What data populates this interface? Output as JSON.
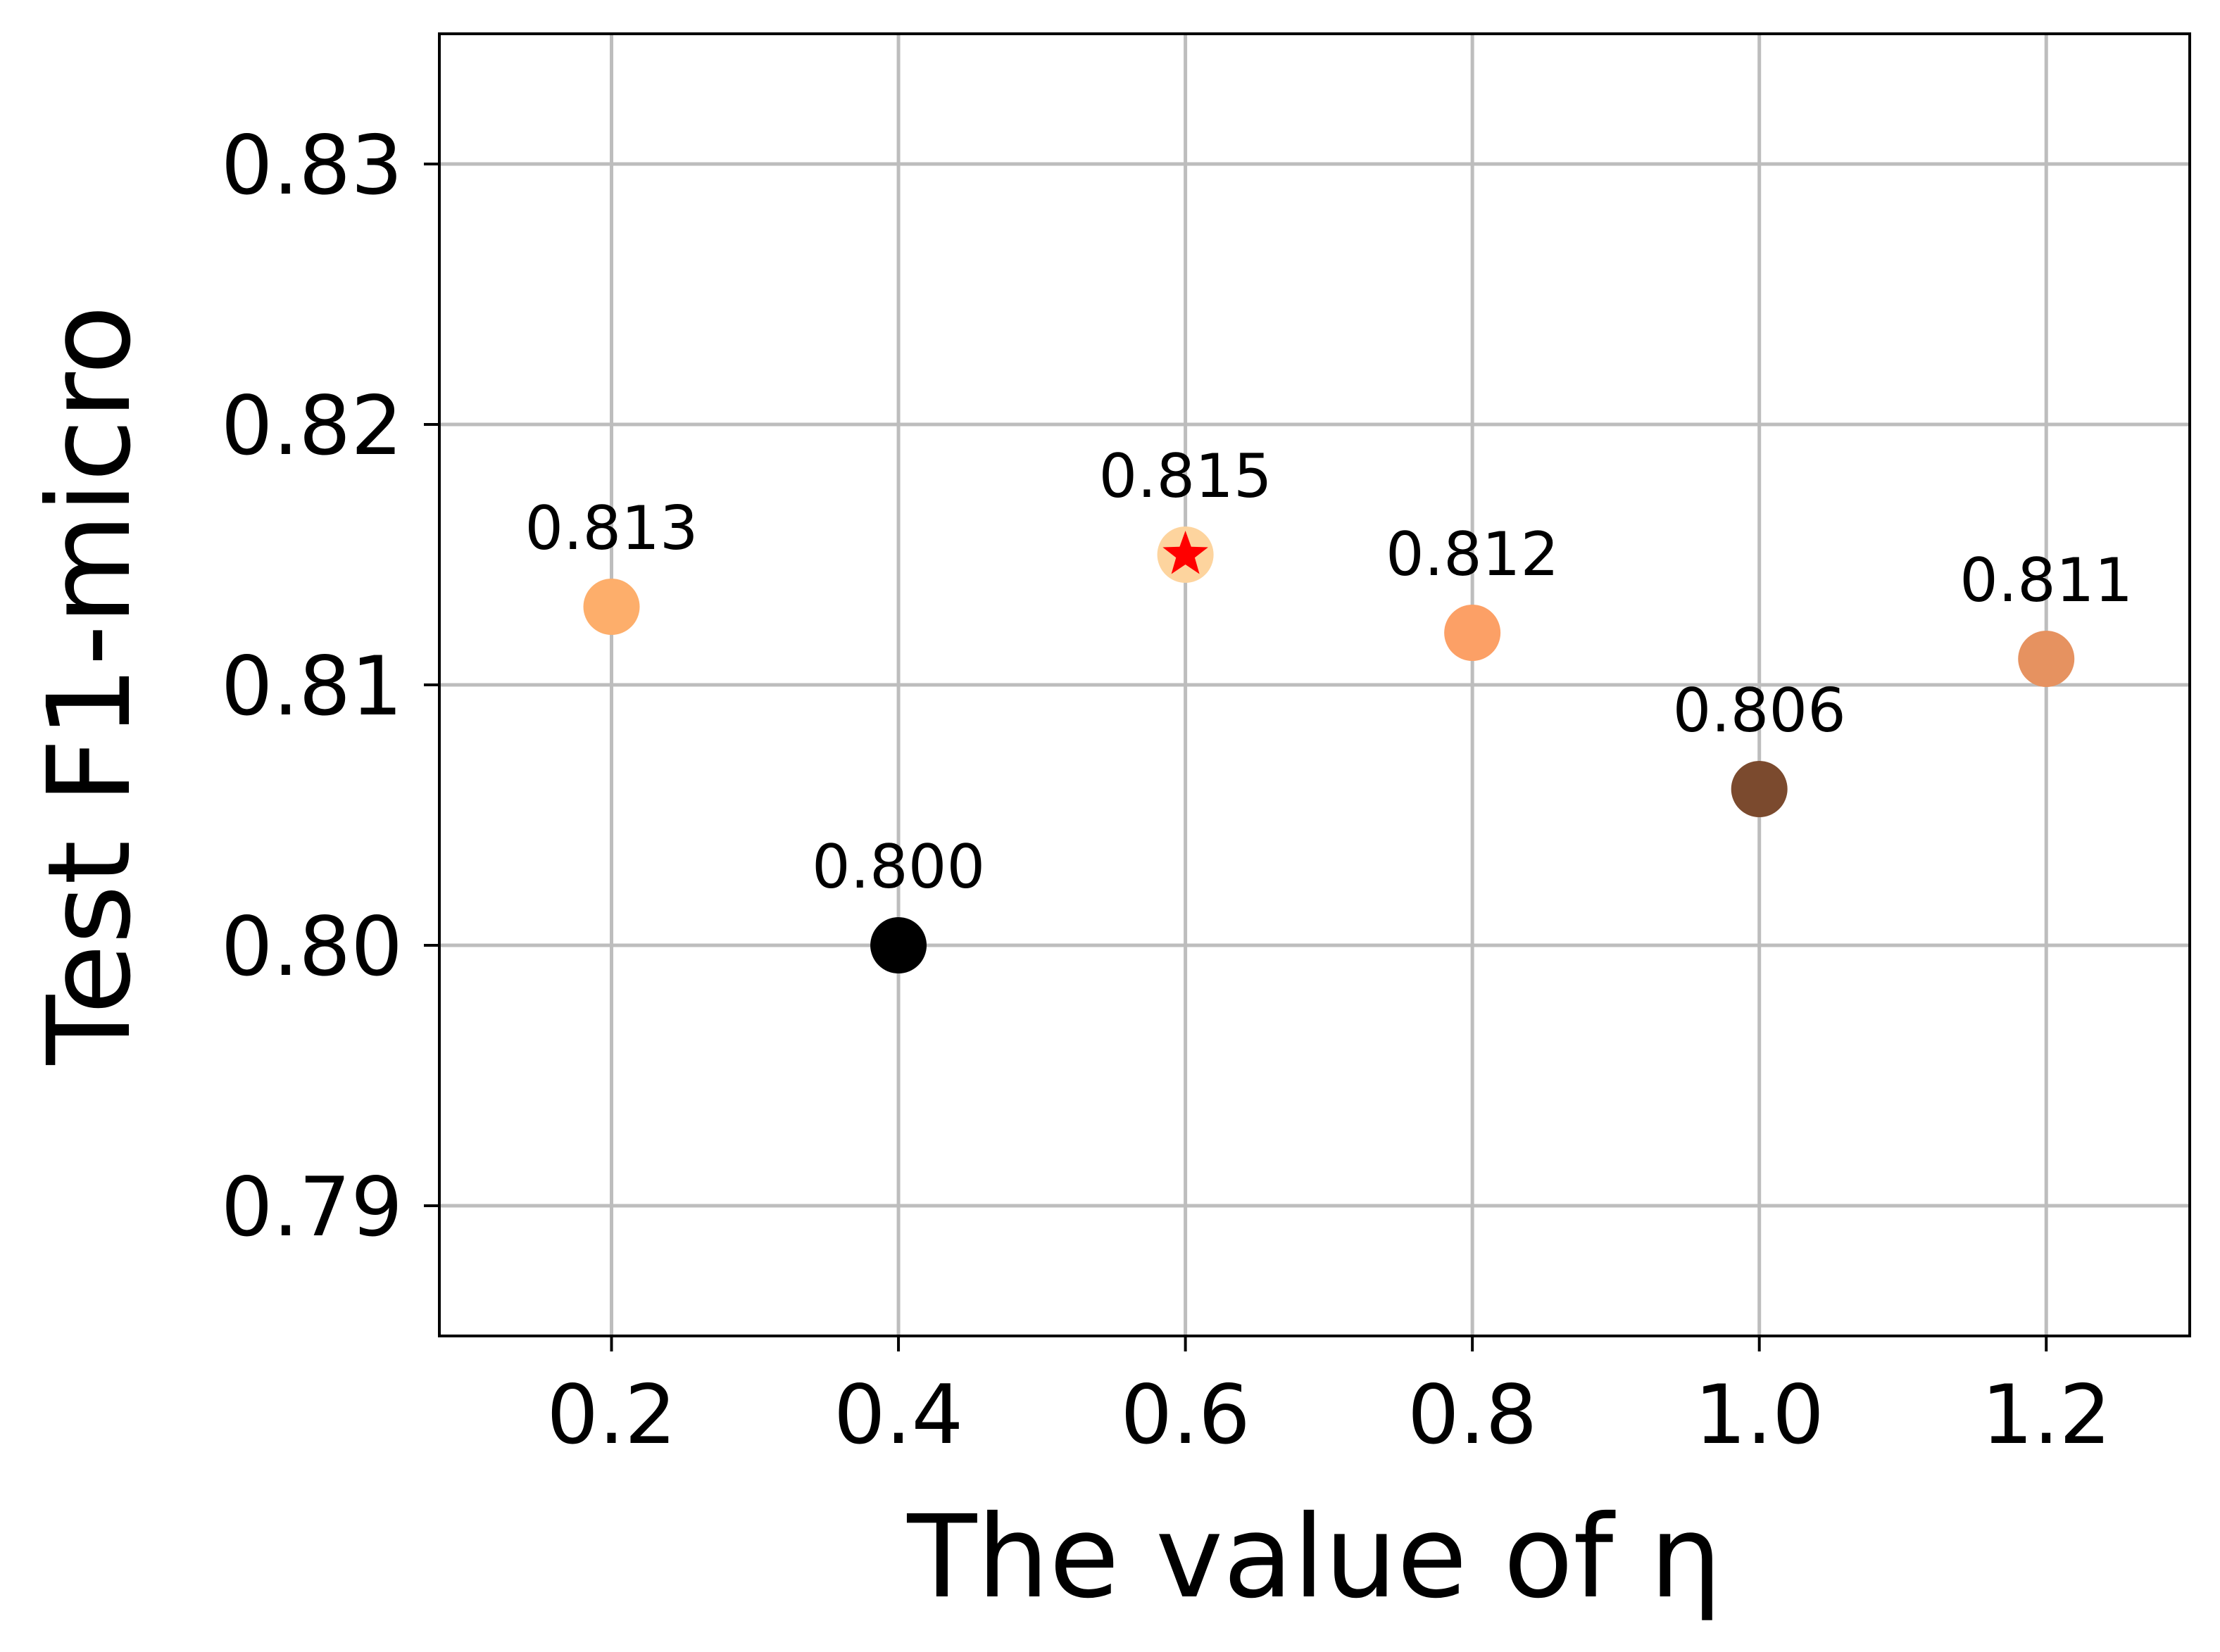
{
  "chart_data": {
    "type": "scatter",
    "title": "",
    "xlabel": "The value of η",
    "ylabel": "Test F1-micro",
    "xlim": [
      0.08,
      1.3
    ],
    "ylim": [
      0.785,
      0.835
    ],
    "x_ticks": [
      0.2,
      0.4,
      0.6,
      0.8,
      1.0,
      1.2
    ],
    "x_tick_labels": [
      "0.2",
      "0.4",
      "0.6",
      "0.8",
      "1.0",
      "1.2"
    ],
    "y_ticks": [
      0.79,
      0.8,
      0.81,
      0.82,
      0.83
    ],
    "y_tick_labels": [
      "0.79",
      "0.80",
      "0.81",
      "0.82",
      "0.83"
    ],
    "grid": true,
    "legend": "none",
    "series": [
      {
        "points": [
          {
            "x": 0.2,
            "y": 0.813,
            "label": "0.813",
            "color": "#fdae6b"
          },
          {
            "x": 0.4,
            "y": 0.8,
            "label": "0.800",
            "color": "#000000"
          },
          {
            "x": 0.6,
            "y": 0.815,
            "label": "0.815",
            "color": "#fdd49e"
          },
          {
            "x": 0.8,
            "y": 0.812,
            "label": "0.812",
            "color": "#fca066"
          },
          {
            "x": 1.0,
            "y": 0.806,
            "label": "0.806",
            "color": "#7b4a2e"
          },
          {
            "x": 1.2,
            "y": 0.811,
            "label": "0.811",
            "color": "#e69260"
          }
        ]
      }
    ],
    "highlight": {
      "x": 0.6,
      "y": 0.815,
      "marker": "star",
      "color": "#ff0000"
    }
  },
  "colors": {
    "grid": "#bdbdbd",
    "axis": "#000000",
    "background": "#ffffff"
  }
}
